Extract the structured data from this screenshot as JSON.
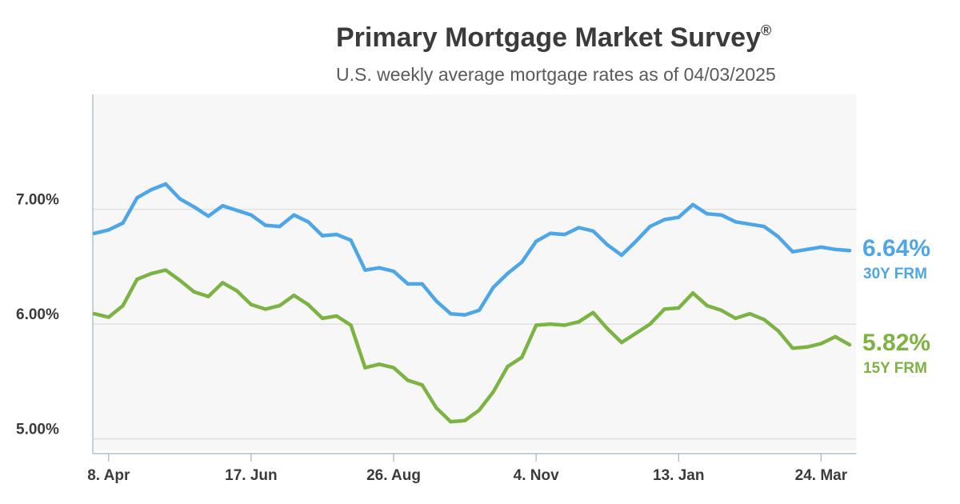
{
  "header": {
    "title": "Primary Mortgage Market Survey",
    "title_mark": "®",
    "subtitle": "U.S. weekly average mortgage rates as of 04/03/2025"
  },
  "chart_data": {
    "type": "line",
    "title": "Primary Mortgage Market Survey®",
    "subtitle": "U.S. weekly average mortgage rates as of 04/03/2025",
    "xlabel": "",
    "ylabel": "",
    "ylim": [
      4.9,
      8.0
    ],
    "y_ticks": [
      {
        "value": 5.0,
        "label": "5.00%"
      },
      {
        "value": 6.0,
        "label": "6.00%"
      },
      {
        "value": 7.0,
        "label": "7.00%"
      }
    ],
    "x_ticks": [
      {
        "index": 1,
        "label": "8. Apr"
      },
      {
        "index": 11,
        "label": "17. Jun"
      },
      {
        "index": 21,
        "label": "26. Aug"
      },
      {
        "index": 31,
        "label": "4. Nov"
      },
      {
        "index": 41,
        "label": "13. Jan"
      },
      {
        "index": 51,
        "label": "24. Mar"
      }
    ],
    "grid": true,
    "legend": "end-labels-right",
    "series": [
      {
        "name": "30Y FRM",
        "end_value_label": "6.64%",
        "end_name_label": "30Y FRM",
        "color": "#4da6e8",
        "values": [
          6.79,
          6.82,
          6.88,
          7.1,
          7.17,
          7.22,
          7.09,
          7.02,
          6.94,
          7.03,
          6.99,
          6.95,
          6.86,
          6.85,
          6.95,
          6.89,
          6.77,
          6.78,
          6.73,
          6.47,
          6.49,
          6.46,
          6.35,
          6.35,
          6.2,
          6.09,
          6.08,
          6.12,
          6.32,
          6.44,
          6.54,
          6.72,
          6.79,
          6.78,
          6.84,
          6.81,
          6.69,
          6.6,
          6.72,
          6.85,
          6.91,
          6.93,
          7.04,
          6.96,
          6.95,
          6.89,
          6.87,
          6.85,
          6.76,
          6.63,
          6.65,
          6.67,
          6.65,
          6.64
        ]
      },
      {
        "name": "15Y FRM",
        "end_value_label": "5.82%",
        "end_name_label": "15Y FRM",
        "color": "#7cb342",
        "values": [
          6.09,
          6.06,
          6.16,
          6.39,
          6.44,
          6.47,
          6.38,
          6.28,
          6.24,
          6.36,
          6.29,
          6.17,
          6.13,
          6.16,
          6.25,
          6.17,
          6.05,
          6.07,
          5.99,
          5.62,
          5.65,
          5.62,
          5.51,
          5.47,
          5.27,
          5.15,
          5.16,
          5.25,
          5.41,
          5.63,
          5.71,
          5.99,
          6.0,
          5.99,
          6.02,
          6.1,
          5.96,
          5.84,
          5.92,
          6.0,
          6.13,
          6.14,
          6.27,
          6.16,
          6.12,
          6.05,
          6.09,
          6.04,
          5.94,
          5.79,
          5.8,
          5.83,
          5.89,
          5.82
        ]
      }
    ]
  },
  "colors": {
    "plot_background": "#f7f7f7",
    "grid": "#dcdcdc",
    "axis": "#9fb3c8",
    "text_dark": "#3b3b3b"
  }
}
